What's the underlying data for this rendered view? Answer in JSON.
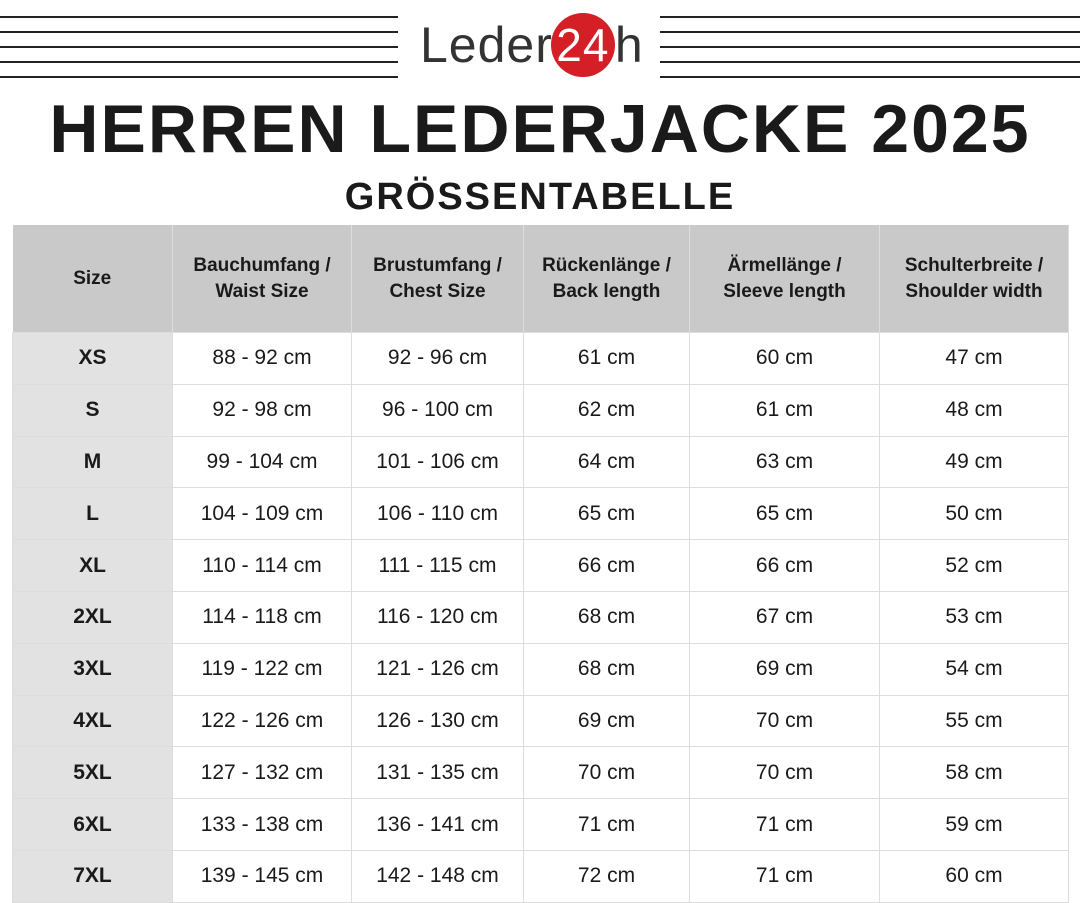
{
  "header": {
    "logo": [
      "Leder",
      "24",
      "h"
    ],
    "title": "HERREN LEDERJACKE 2025",
    "subtitle": "GRÖSSENTABELLE"
  },
  "table": {
    "columns": [
      [
        "Size"
      ],
      [
        "Bauchumfang /",
        "Waist Size"
      ],
      [
        "Brustumfang /",
        "Chest Size"
      ],
      [
        "Rückenlänge /",
        "Back length"
      ],
      [
        "Ärmellänge /",
        "Sleeve length"
      ],
      [
        "Schulterbreite /",
        "Shoulder width"
      ]
    ],
    "rows": [
      [
        "XS",
        "88 - 92 cm",
        "92 - 96 cm",
        "61 cm",
        "60 cm",
        "47 cm"
      ],
      [
        "S",
        "92 - 98 cm",
        "96 - 100 cm",
        "62 cm",
        "61 cm",
        "48 cm"
      ],
      [
        "M",
        "99 - 104 cm",
        "101 - 106 cm",
        "64 cm",
        "63 cm",
        "49 cm"
      ],
      [
        "L",
        "104 - 109 cm",
        "106 - 110 cm",
        "65 cm",
        "65 cm",
        "50 cm"
      ],
      [
        "XL",
        "110 - 114 cm",
        "111 - 115 cm",
        "66 cm",
        "66 cm",
        "52 cm"
      ],
      [
        "2XL",
        "114 - 118 cm",
        "116 - 120 cm",
        "68 cm",
        "67 cm",
        "53 cm"
      ],
      [
        "3XL",
        "119 - 122 cm",
        "121 - 126 cm",
        "68 cm",
        "69 cm",
        "54 cm"
      ],
      [
        "4XL",
        "122 - 126 cm",
        "126 - 130 cm",
        "69 cm",
        "70 cm",
        "55 cm"
      ],
      [
        "5XL",
        "127 - 132 cm",
        "131 - 135 cm",
        "70 cm",
        "70 cm",
        "58 cm"
      ],
      [
        "6XL",
        "133 - 138 cm",
        "136 - 141 cm",
        "71 cm",
        "71 cm",
        "59 cm"
      ],
      [
        "7XL",
        "139 - 145 cm",
        "142 - 148 cm",
        "72 cm",
        "71 cm",
        "60 cm"
      ]
    ]
  }
}
